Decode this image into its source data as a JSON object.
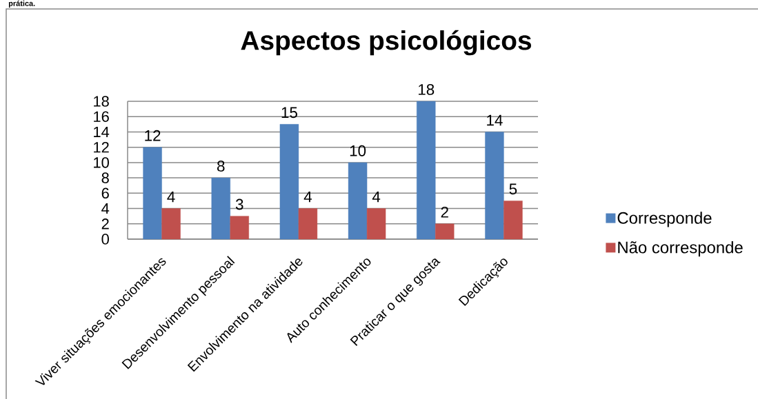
{
  "chart_data": {
    "type": "bar",
    "title": "Aspectos psicológicos",
    "categories": [
      "Viver situações emocionantes",
      "Desenvolvimento pessoal",
      "Envolvimento na atividade",
      "Auto conhecimento",
      "Praticar o que gosta",
      "Dedicação"
    ],
    "series": [
      {
        "name": "Corresponde",
        "color": "#4f81bd",
        "values": [
          12,
          8,
          15,
          10,
          18,
          14
        ]
      },
      {
        "name": "Não corresponde",
        "color": "#c0504d",
        "values": [
          4,
          3,
          4,
          4,
          2,
          5
        ]
      }
    ],
    "ylim": [
      0,
      18
    ],
    "yticks": [
      0,
      2,
      4,
      6,
      8,
      10,
      12,
      14,
      16,
      18
    ],
    "grid": "y",
    "legend": "right",
    "data_labels": true,
    "annotations": [
      "prática."
    ]
  }
}
